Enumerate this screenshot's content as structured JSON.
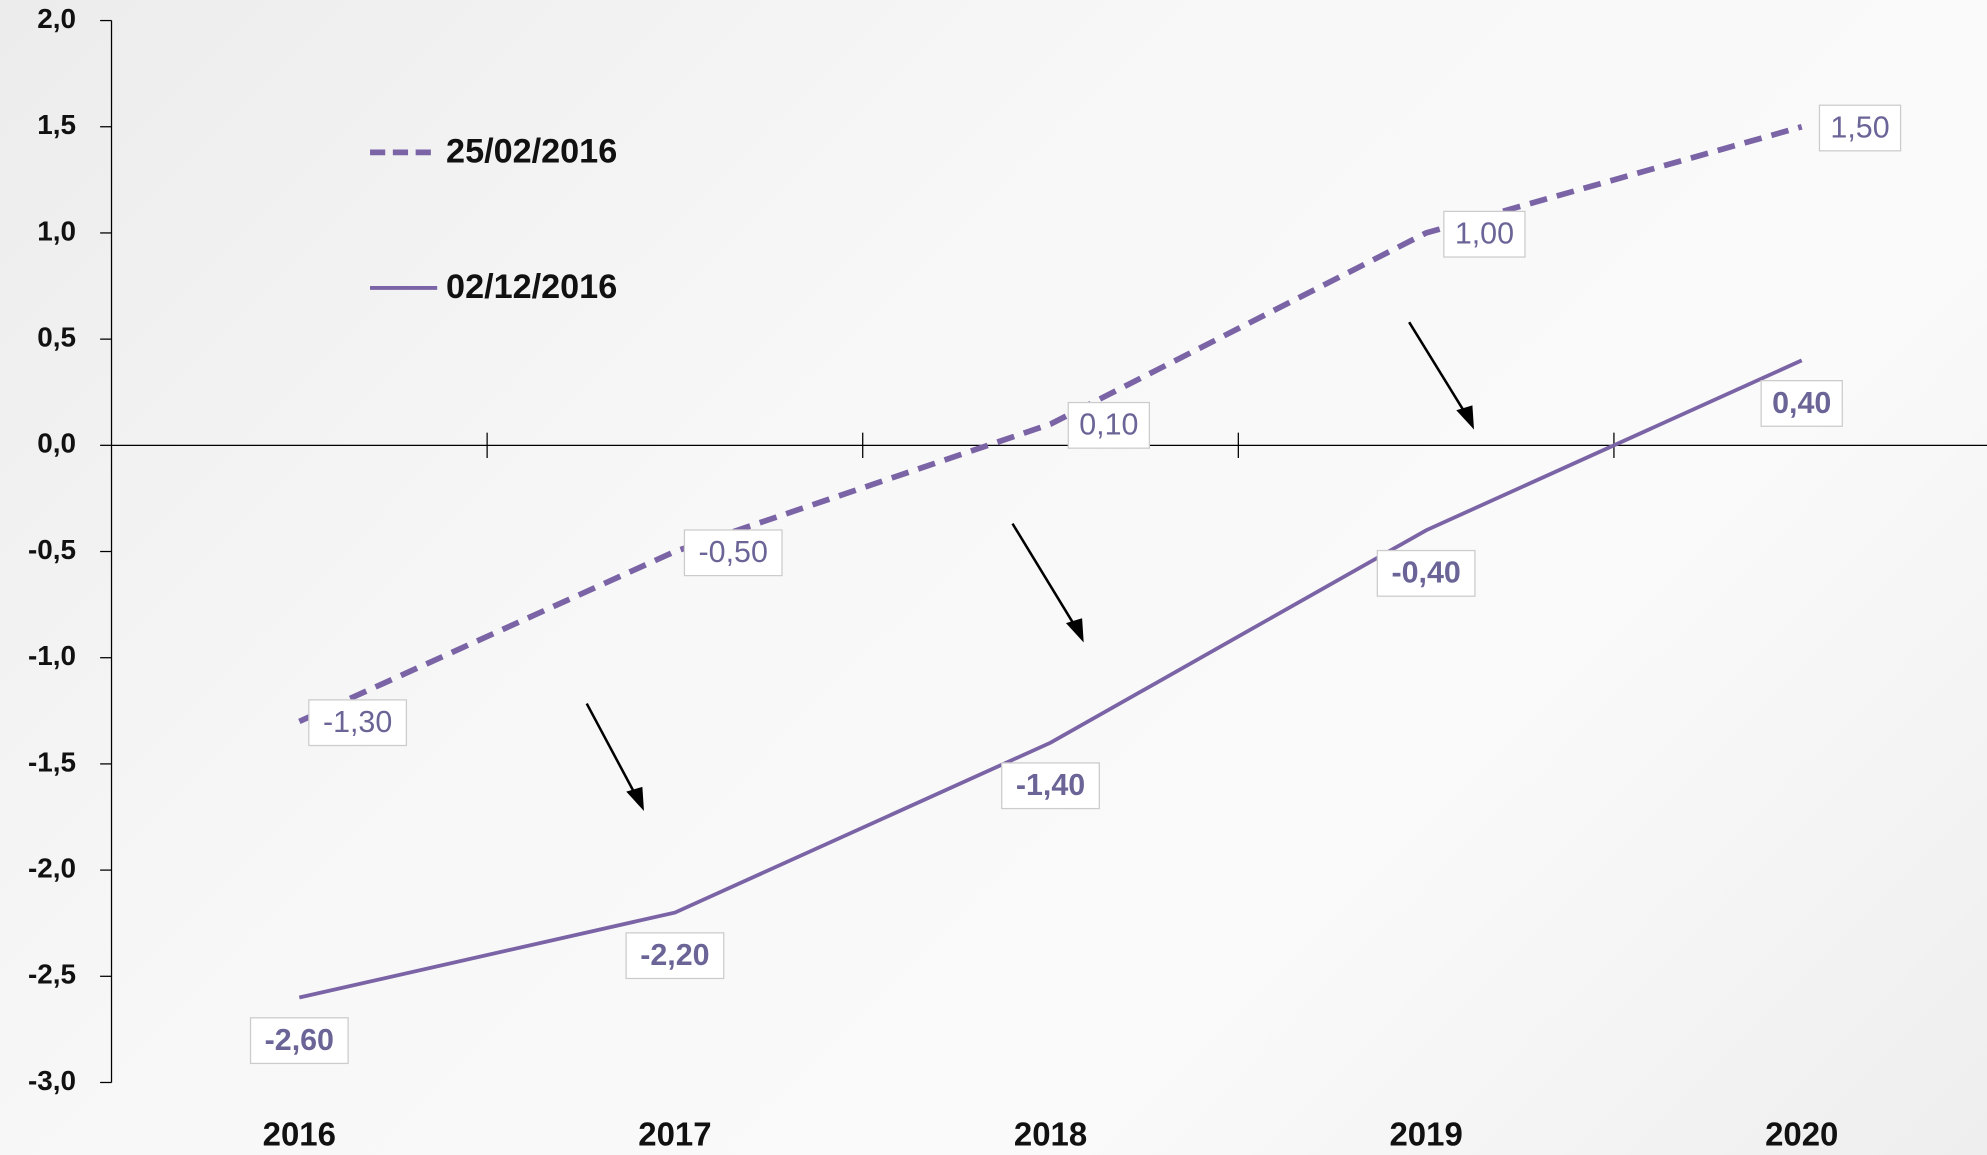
{
  "chart_data": {
    "type": "line",
    "categories": [
      "2016",
      "2017",
      "2018",
      "2019",
      "2020"
    ],
    "series": [
      {
        "name": "25/02/2016",
        "color": "#7b64a6",
        "dash": true,
        "values": [
          -1.3,
          -0.5,
          0.1,
          1.0,
          1.5
        ],
        "value_labels": [
          "-1,30",
          "-0,50",
          "0,10",
          "1,00",
          "1,50"
        ]
      },
      {
        "name": "02/12/2016",
        "color": "#7b64a6",
        "dash": false,
        "values": [
          -2.6,
          -2.2,
          -1.4,
          -0.4,
          0.4
        ],
        "value_labels": [
          "-2,60",
          "-2,20",
          "-1,40",
          "-0,40",
          "0,40"
        ]
      }
    ],
    "ylim": [
      -3.0,
      2.0
    ],
    "yticks": [
      {
        "value": 2.0,
        "label": "2,0"
      },
      {
        "value": 1.5,
        "label": "1,5"
      },
      {
        "value": 1.0,
        "label": "1,0"
      },
      {
        "value": 0.5,
        "label": "0,5"
      },
      {
        "value": 0.0,
        "label": "0,0"
      },
      {
        "value": -0.5,
        "label": "-0,5"
      },
      {
        "value": -1.0,
        "label": "-1,0"
      },
      {
        "value": -1.5,
        "label": "-1,5"
      },
      {
        "value": -2.0,
        "label": "-2,0"
      },
      {
        "value": -2.5,
        "label": "-2,5"
      },
      {
        "value": -3.0,
        "label": "-3,0"
      }
    ],
    "legend": "top-left"
  }
}
